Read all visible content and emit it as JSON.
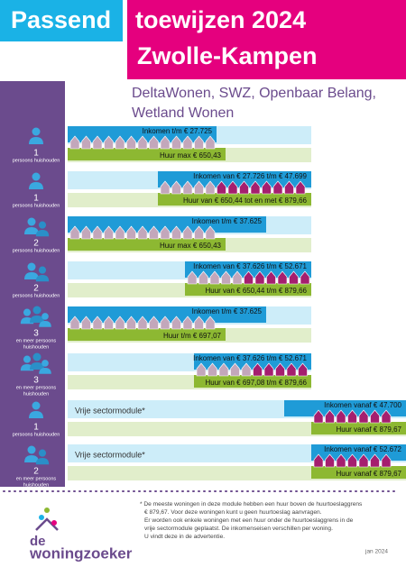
{
  "header": {
    "title_part1": "Passend",
    "title_part2": "toewijzen 2024",
    "title_line2": "Zwolle-Kampen",
    "subtitle": [
      "DeltaWonen, SWZ, Openbaar Belang,",
      "Wetland Wonen"
    ]
  },
  "rows": [
    {
      "count": "1",
      "household": [
        "persoons huishouden"
      ],
      "income": "Inkomen t/m € 27.725",
      "rent": "Huur max € 650,43"
    },
    {
      "count": "1",
      "household": [
        "persoons huishouden"
      ],
      "income": "Inkomen van € 27.726 t/m € 47.699",
      "rent": "Huur van € 650,44 tot en met € 879,66"
    },
    {
      "count": "2",
      "household": [
        "persoons huishouden"
      ],
      "income": "Inkomen t/m € 37.625",
      "rent": "Huur max € 650,43"
    },
    {
      "count": "2",
      "household": [
        "persoons huishouden"
      ],
      "income": "Inkomen van € 37.626 t/m € 52.671",
      "rent": "Huur van € 650,44 t/m € 879,66"
    },
    {
      "count": "3",
      "household": [
        "en meer persoons",
        "huishouden"
      ],
      "income": "Inkomen t/m € 37.625",
      "rent": "Huur t/m € 697,07"
    },
    {
      "count": "3",
      "household": [
        "en meer persoons",
        "huishouden"
      ],
      "income": "Inkomen van € 37.626 t/m € 52.671",
      "rent": "Huur van € 697,08 t/m € 879,66"
    },
    {
      "count": "1",
      "household": [
        "persoons huishouden"
      ],
      "module": "Vrije sectormodule*",
      "income": "Inkomen vanaf € 47.700",
      "rent": "Huur vanaf € 879,67"
    },
    {
      "count": "2",
      "household": [
        "en meer persoons",
        "huishouden"
      ],
      "module": "Vrije sectormodule*",
      "income": "Inkomen vanaf € 52.672",
      "rent": "Huur vanaf € 879,67"
    }
  ],
  "footnote": [
    "* De meeste woningen in deze module hebben een huur boven de huurtoeslaggrens",
    "€ 879,67. Voor deze woningen kunt u geen huurtoeslag aanvragen.",
    "Er worden ook enkele woningen met een huur onder de huurtoeslaggrens in de",
    "vrije sectormodule geplaatst. De inkomenseisen verschillen per woning.",
    "U vindt deze in de advertentie."
  ],
  "logo": {
    "top": "de",
    "bottom": "woningzoeker"
  },
  "date": "jan 2024"
}
